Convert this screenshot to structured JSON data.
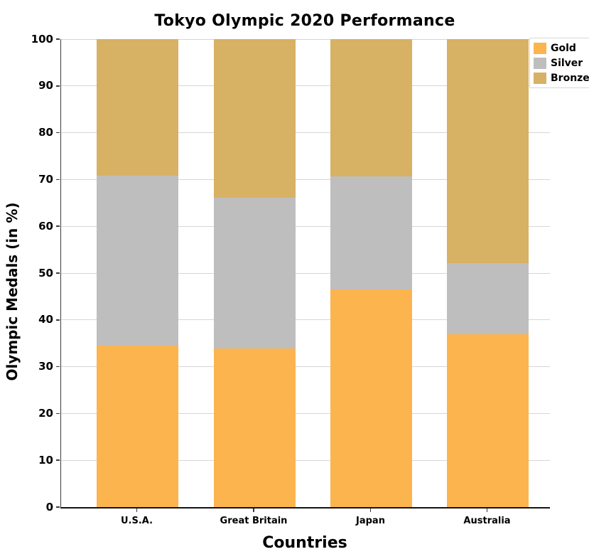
{
  "chart_data": {
    "type": "bar",
    "stacked": true,
    "title": "Tokyo Olympic 2020 Performance",
    "xlabel": "Countries",
    "ylabel": "Olympic Medals (in %)",
    "categories": [
      "U.S.A.",
      "Great Britain",
      "Japan",
      "Australia"
    ],
    "series": [
      {
        "name": "Gold",
        "color": "#FCB44F",
        "values": [
          34.51,
          33.85,
          46.55,
          36.96
        ]
      },
      {
        "name": "Silver",
        "color": "#BEBEBE",
        "values": [
          36.28,
          32.31,
          24.14,
          15.22
        ]
      },
      {
        "name": "Bronze",
        "color": "#D7B164",
        "values": [
          29.2,
          33.85,
          29.31,
          47.83
        ]
      }
    ],
    "ylim": [
      0,
      100
    ],
    "yticks": [
      0,
      10,
      20,
      30,
      40,
      50,
      60,
      70,
      80,
      90,
      100
    ],
    "grid": "horizontal",
    "legend_position": "upper-right-outside",
    "legend_entries": [
      "Gold",
      "Silver",
      "Bronze"
    ]
  },
  "colors": {
    "background": "#ffffff",
    "gridline": "#d6d6d6",
    "axis": "#141414",
    "text": "#000000"
  }
}
